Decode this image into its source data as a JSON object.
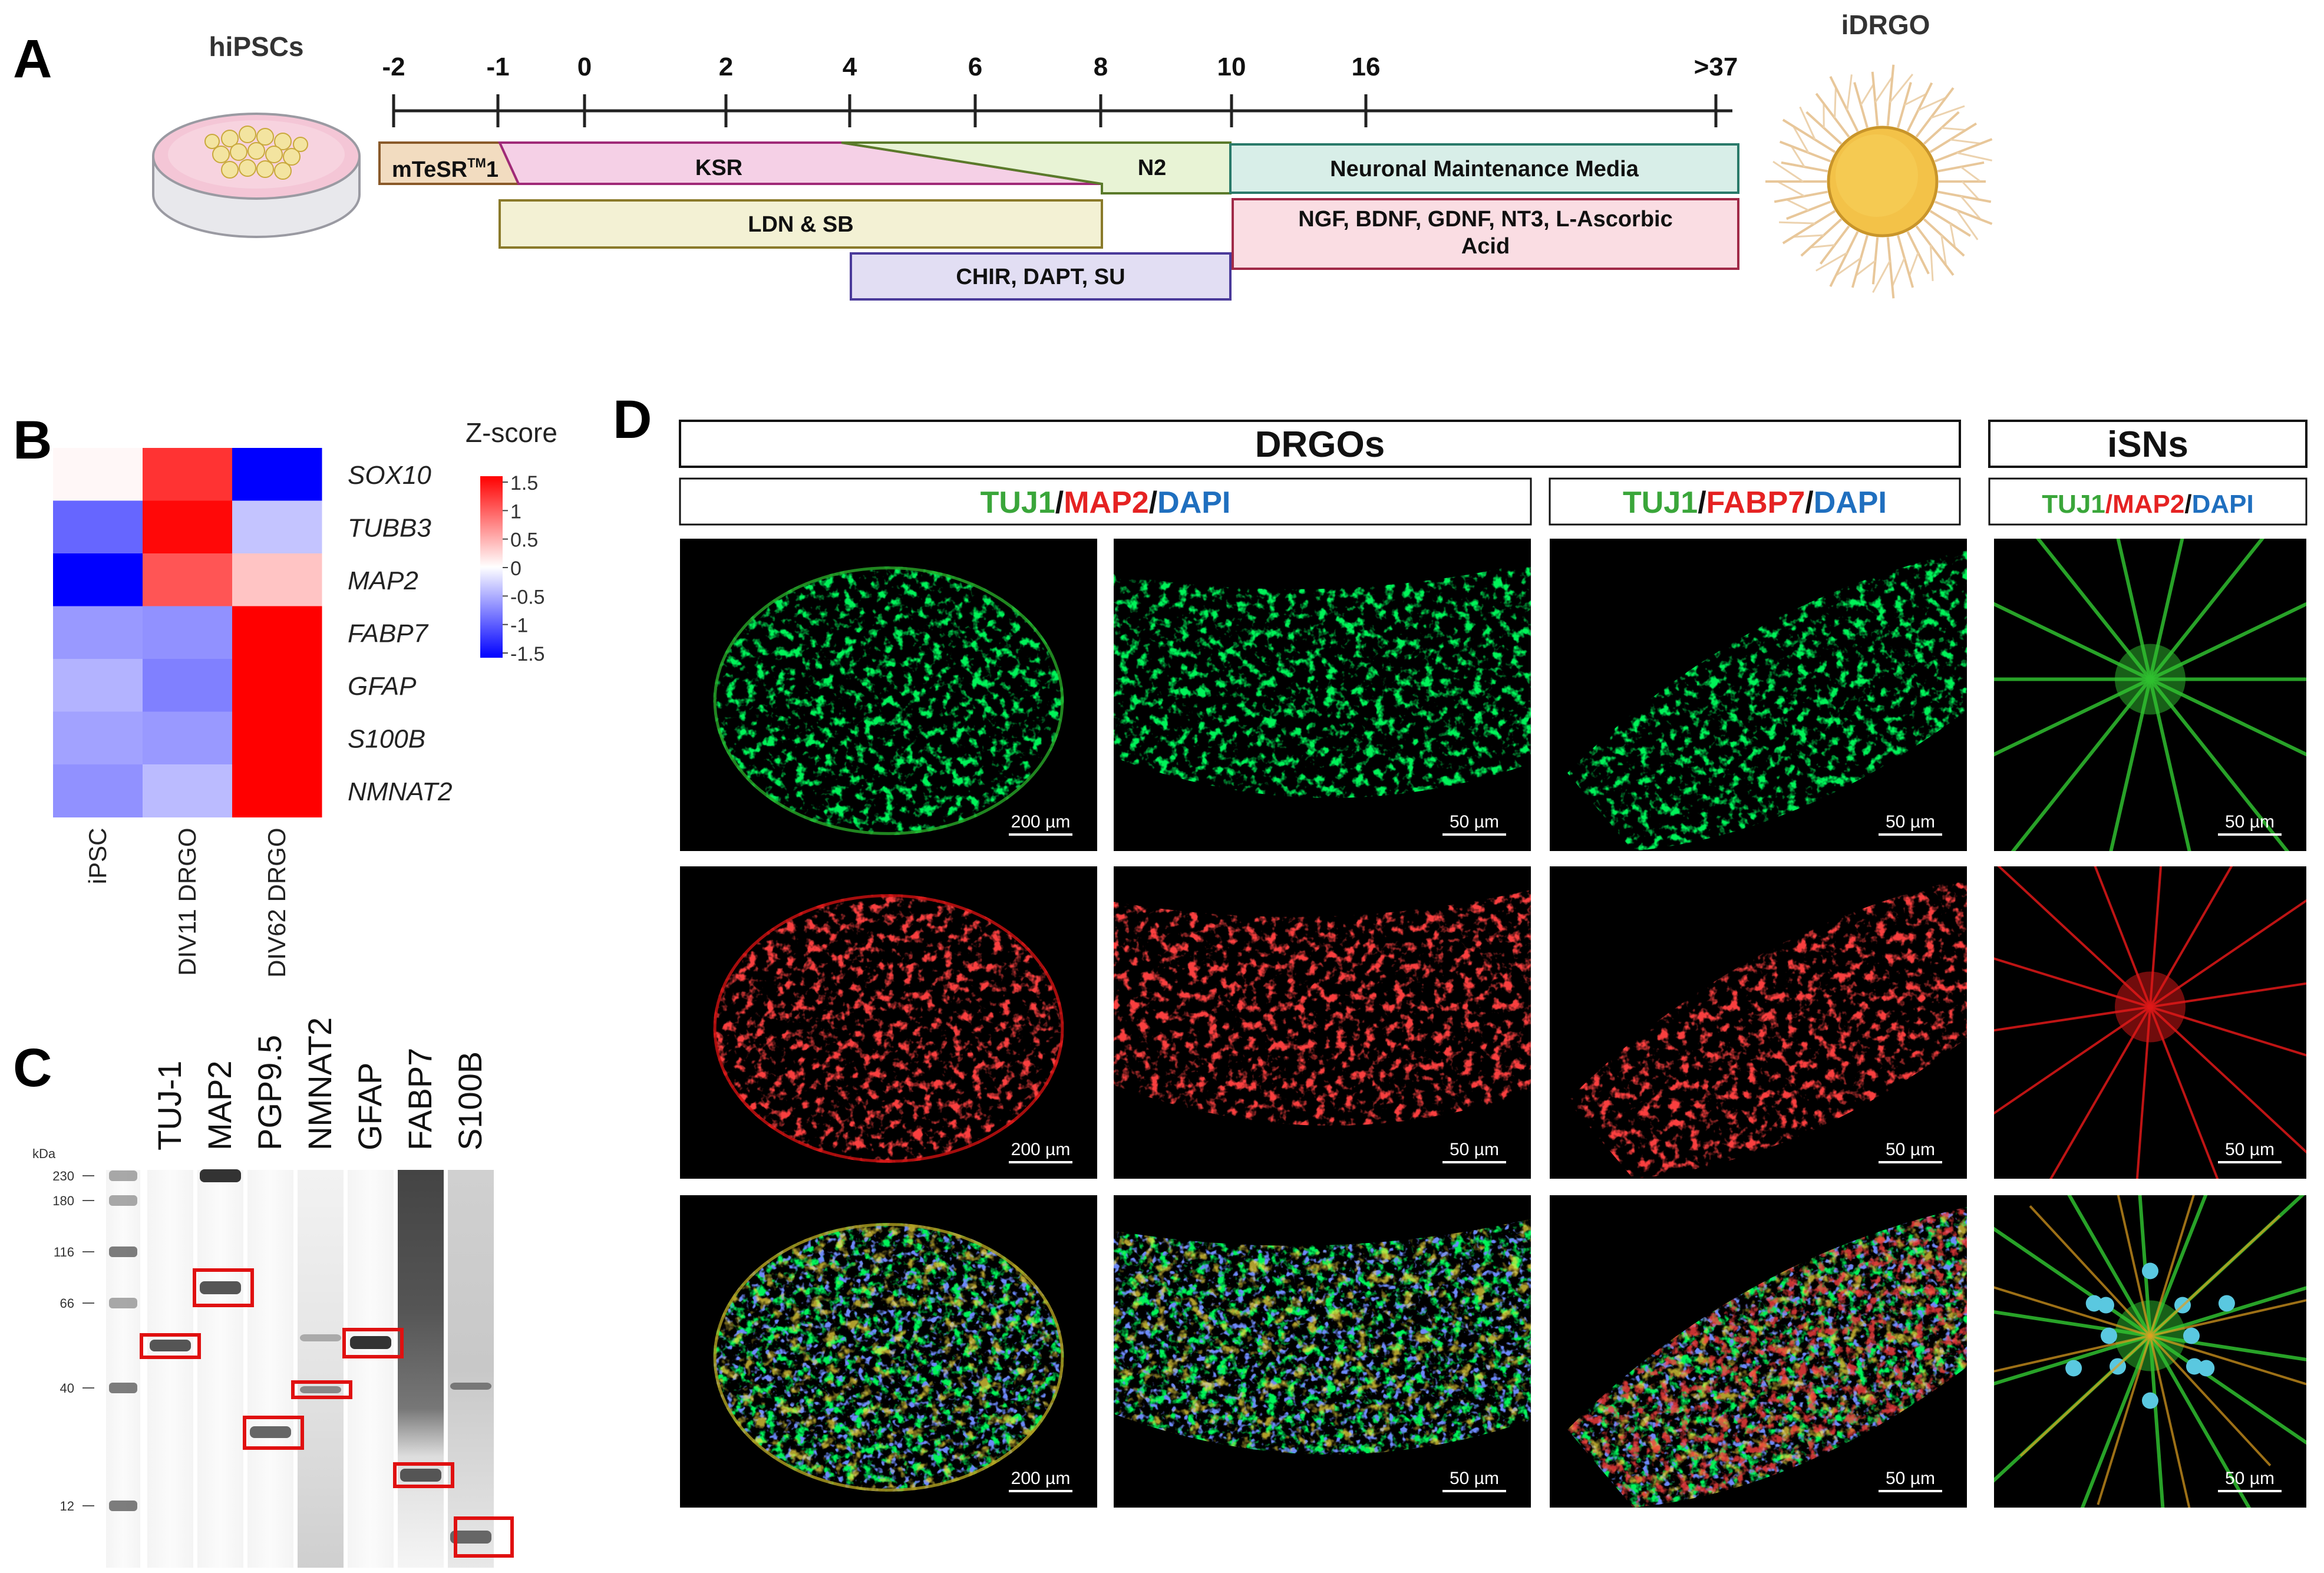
{
  "panels": {
    "A": "A",
    "B": "B",
    "C": "C",
    "D": "D"
  },
  "panel_a": {
    "hipsc_label": "hiPSCs",
    "idrgo_label": "iDRGO",
    "timeline_days": [
      "-2",
      "-1",
      "0",
      "2",
      "4",
      "6",
      "8",
      "10",
      "16",
      ">37"
    ],
    "media": {
      "mtesr": "mTeSR",
      "mtesr_sup": "TM",
      "mtesr_suffix": "1",
      "ksr": "KSR",
      "n2": "N2",
      "neuronal": "Neuronal Maintenance Media"
    },
    "factors": {
      "ldn_sb": "LDN & SB",
      "chir": "CHIR, DAPT, SU",
      "ngf_line1": "NGF, BDNF, GDNF, NT3, L-Ascorbic",
      "ngf_line2": "Acid"
    },
    "colors": {
      "mtesr": "#f2dcc0",
      "ksr": "#f5d0e6",
      "n2": "#e8f3d5",
      "neuronal": "#d8eee8",
      "ldn": "#f3f1d4",
      "chir": "#e2def3",
      "ngf": "#fadde3"
    }
  },
  "panel_b": {
    "chart_data": {
      "type": "heatmap",
      "legend_title": "Z-score",
      "legend_ticks": [
        "1.5",
        "1",
        "0.5",
        "0",
        "-0.5",
        "-1",
        "-1.5"
      ],
      "scale_range": [
        -1.5,
        1.5
      ],
      "columns": [
        "iPSC",
        "DIV11 DRGO",
        "DIV62 DRGO"
      ],
      "rows": [
        "SOX10",
        "TUBB3",
        "MAP2",
        "FABP7",
        "GFAP",
        "S100B",
        "NMNAT2"
      ],
      "values": [
        [
          0.05,
          1.2,
          -1.5
        ],
        [
          -0.9,
          1.45,
          -0.35
        ],
        [
          -1.55,
          1.0,
          0.35
        ],
        [
          -0.6,
          -0.65,
          1.6
        ],
        [
          -0.45,
          -0.75,
          1.6
        ],
        [
          -0.55,
          -0.6,
          1.6
        ],
        [
          -0.65,
          -0.4,
          1.6
        ]
      ],
      "colors": {
        "low": "#0000ff",
        "mid": "#ffffff",
        "high": "#ff0000"
      }
    }
  },
  "panel_c": {
    "kda_label": "kDa",
    "ladder_marks": [
      "230",
      "180",
      "116",
      "66",
      "40",
      "12"
    ],
    "lane_labels": [
      "TUJ-1",
      "MAP2",
      "PGP9.5",
      "NMNAT2",
      "GFAP",
      "FABP7",
      "S100B"
    ],
    "highlight_color": "#e01010"
  },
  "panel_d": {
    "group_drgo": "DRGOs",
    "group_isn": "iSNs",
    "stain_sets": [
      [
        {
          "t": "TUJ1",
          "c": "#3aa63a"
        },
        {
          "t": "/",
          "c": "#111111"
        },
        {
          "t": "MAP2",
          "c": "#e52222"
        },
        {
          "t": "/",
          "c": "#111111"
        },
        {
          "t": "DAPI",
          "c": "#1f6fbf"
        }
      ],
      [
        {
          "t": "TUJ1",
          "c": "#3aa63a"
        },
        {
          "t": "/",
          "c": "#111111"
        },
        {
          "t": "FABP7",
          "c": "#e52222"
        },
        {
          "t": "/",
          "c": "#111111"
        },
        {
          "t": "DAPI",
          "c": "#1f6fbf"
        }
      ],
      [
        {
          "t": "TUJ1",
          "c": "#3aa63a"
        },
        {
          "t": "/",
          "c": "#e52222"
        },
        {
          "t": "MAP2",
          "c": "#e52222"
        },
        {
          "t": "/",
          "c": "#111111"
        },
        {
          "t": "DAPI",
          "c": "#1f6fbf"
        }
      ]
    ],
    "scale_bars": [
      [
        "200 µm",
        "50 µm",
        "50 µm",
        "50 µm"
      ],
      [
        "200 µm",
        "50 µm",
        "50 µm",
        "50 µm"
      ],
      [
        "200 µm",
        "50 µm",
        "50 µm",
        "50 µm"
      ]
    ],
    "row_channels": [
      "green",
      "red",
      "merge"
    ]
  }
}
